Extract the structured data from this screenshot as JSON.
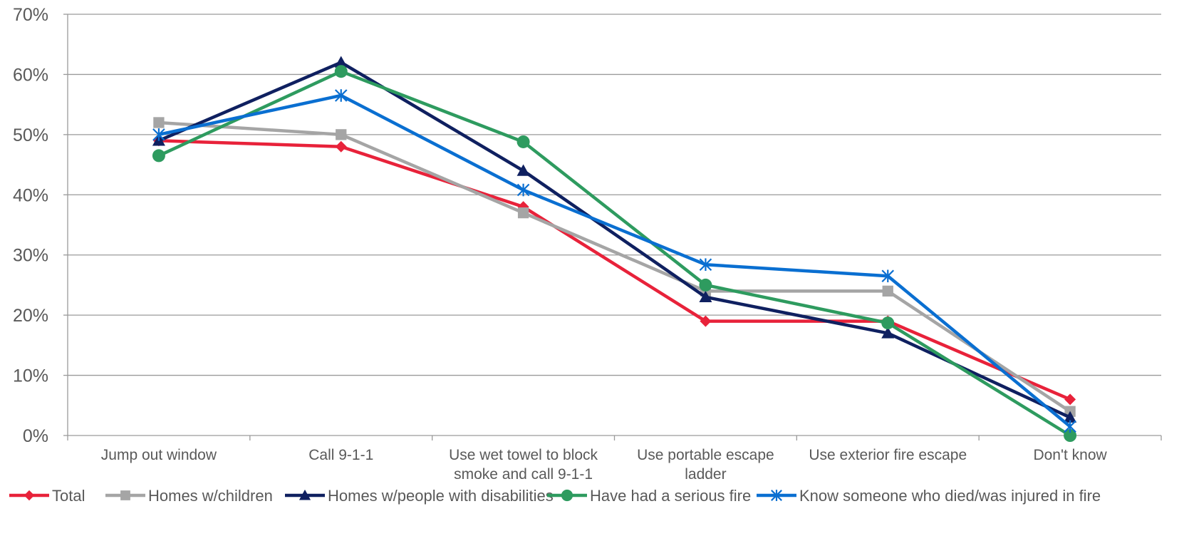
{
  "chart_data": {
    "type": "line",
    "categories": [
      [
        "Jump out  window"
      ],
      [
        "Call 9-1-1"
      ],
      [
        "Use wet towel to block",
        "smoke and call 9-1-1"
      ],
      [
        "Use portable escape",
        "ladder"
      ],
      [
        "Use exterior fire escape"
      ],
      [
        "Don't know"
      ]
    ],
    "y_ticks": [
      "0%",
      "10%",
      "20%",
      "30%",
      "40%",
      "50%",
      "60%",
      "70%"
    ],
    "ylim": [
      0,
      70
    ],
    "y_unit": "%",
    "grid": true,
    "legend_position": "bottom",
    "series": [
      {
        "name": "Total",
        "color": "#e8223a",
        "marker": "diamond",
        "values": [
          49,
          48,
          38,
          19,
          19,
          6
        ]
      },
      {
        "name": "Homes w/children",
        "color": "#a5a5a5",
        "marker": "square",
        "values": [
          52,
          50,
          37,
          24,
          24,
          4
        ]
      },
      {
        "name": "Homes w/people with disabilities",
        "color": "#0f2060",
        "marker": "triangle",
        "values": [
          49,
          62,
          44,
          23,
          17,
          3
        ]
      },
      {
        "name": "Have had a serious fire",
        "color": "#2e9b5f",
        "marker": "circle",
        "values": [
          46.5,
          60.5,
          48.8,
          25,
          18.7,
          0
        ]
      },
      {
        "name": "Know someone who died/was injured in fire",
        "color": "#0a6fd1",
        "marker": "star",
        "values": [
          50,
          56.5,
          40.8,
          28.4,
          26.5,
          1.5
        ]
      }
    ]
  }
}
